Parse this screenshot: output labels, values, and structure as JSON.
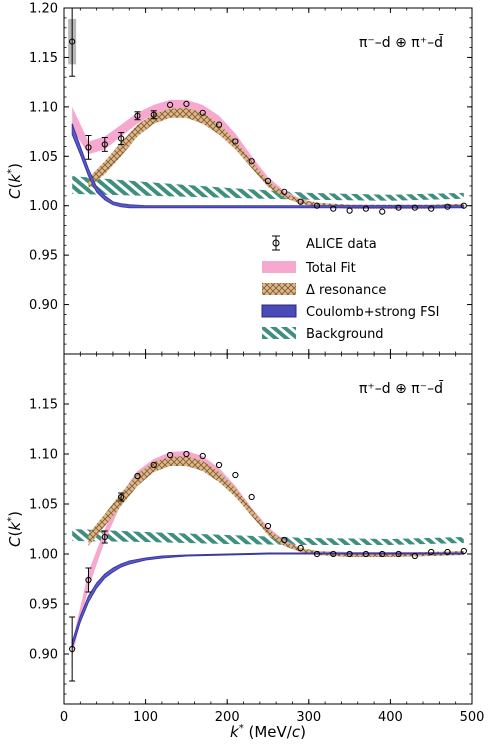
{
  "chart_data": {
    "type": "scatter",
    "xlabel": "k* (MeV/c)",
    "ylabel": "C(k*)",
    "xlim": [
      0,
      500
    ],
    "x_ticks": [
      "0",
      "100",
      "200",
      "300",
      "400",
      "500"
    ],
    "legend_position": "right, middle of top panel",
    "colors": {
      "total_fit": "#f7a8cf",
      "delta": "#b88a5a",
      "coulomb": "#3a3aa0",
      "background": "#3f8f7f",
      "data": "#000000"
    },
    "legend": [
      {
        "key": "data",
        "label": "ALICE data"
      },
      {
        "key": "total_fit",
        "label": "Total Fit"
      },
      {
        "key": "delta",
        "label": "Δ resonance"
      },
      {
        "key": "coulomb",
        "label": "Coulomb+strong FSI"
      },
      {
        "key": "background",
        "label": "Background"
      }
    ],
    "panels": [
      {
        "label": "π⁻–d ⊕ π⁺–d̄",
        "ylim": [
          0.85,
          1.2
        ],
        "y_ticks": [
          "0.90",
          "0.95",
          "1.00",
          "1.05",
          "1.10",
          "1.15",
          "1.20"
        ],
        "data": {
          "x": [
            10,
            30,
            50,
            70,
            90,
            110,
            130,
            150,
            170,
            190,
            210,
            230,
            250,
            270,
            290,
            310,
            330,
            350,
            370,
            390,
            410,
            430,
            450,
            470,
            490
          ],
          "y": [
            1.166,
            1.059,
            1.062,
            1.068,
            1.091,
            1.092,
            1.102,
            1.103,
            1.094,
            1.082,
            1.065,
            1.045,
            1.025,
            1.014,
            1.004,
            1.0,
            0.997,
            0.995,
            0.997,
            0.994,
            0.998,
            0.998,
            0.997,
            0.999,
            1.0
          ],
          "err": [
            0.035,
            0.012,
            0.007,
            0.006,
            0.004,
            0.004,
            0.003,
            0.003,
            0.003,
            0.003,
            0.003,
            0.002,
            0.002,
            0.002,
            0.002,
            0.002,
            0.002,
            0.002,
            0.002,
            0.002,
            0.002,
            0.002,
            0.002,
            0.002,
            0.002
          ],
          "sys_box": [
            {
              "x": 10,
              "low": 1.143,
              "high": 1.189
            }
          ]
        },
        "total_fit": {
          "x": [
            10,
            30,
            50,
            70,
            90,
            110,
            130,
            150,
            170,
            190,
            210,
            230,
            250,
            270,
            290,
            310,
            350,
            400,
            450,
            490
          ],
          "low": [
            1.078,
            1.052,
            1.057,
            1.07,
            1.083,
            1.093,
            1.098,
            1.099,
            1.094,
            1.083,
            1.065,
            1.043,
            1.022,
            1.009,
            1.002,
            0.999,
            0.997,
            0.997,
            0.997,
            0.998
          ],
          "high": [
            1.1,
            1.065,
            1.07,
            1.082,
            1.094,
            1.102,
            1.107,
            1.107,
            1.102,
            1.091,
            1.073,
            1.05,
            1.029,
            1.015,
            1.007,
            1.003,
            1.001,
            1.001,
            1.001,
            1.002
          ]
        },
        "delta": {
          "x": [
            30,
            50,
            70,
            90,
            110,
            130,
            150,
            170,
            190,
            210,
            230,
            250,
            270,
            290,
            310,
            350,
            400,
            450,
            490
          ],
          "low": [
            1.018,
            1.032,
            1.05,
            1.07,
            1.083,
            1.089,
            1.089,
            1.083,
            1.072,
            1.057,
            1.038,
            1.019,
            1.008,
            1.002,
            0.999,
            0.997,
            0.997,
            0.997,
            0.998
          ],
          "high": [
            1.028,
            1.045,
            1.064,
            1.082,
            1.093,
            1.098,
            1.099,
            1.094,
            1.083,
            1.066,
            1.045,
            1.025,
            1.013,
            1.006,
            1.003,
            1.001,
            1.001,
            1.001,
            1.002
          ]
        },
        "coulomb": {
          "x": [
            10,
            20,
            30,
            40,
            50,
            60,
            70,
            80,
            100,
            120,
            150,
            200,
            250,
            300,
            400,
            490
          ],
          "low": [
            1.072,
            1.052,
            1.03,
            1.014,
            1.006,
            1.001,
            0.999,
            0.998,
            0.998,
            0.998,
            0.998,
            0.998,
            0.998,
            0.998,
            0.998,
            0.998
          ],
          "high": [
            1.083,
            1.06,
            1.037,
            1.019,
            1.01,
            1.004,
            1.002,
            1.001,
            1.0,
            1.0,
            1.0,
            1.0,
            1.0,
            1.0,
            1.0,
            1.0
          ]
        },
        "background": {
          "x": [
            10,
            100,
            200,
            300,
            400,
            490
          ],
          "low": [
            1.012,
            1.01,
            1.008,
            1.006,
            1.005,
            1.007
          ],
          "high": [
            1.03,
            1.024,
            1.018,
            1.013,
            1.011,
            1.013
          ]
        }
      },
      {
        "label": "π⁺–d ⊕ π⁻–d̄",
        "ylim": [
          0.85,
          1.2
        ],
        "y_ticks": [
          "0.90",
          "0.95",
          "1.00",
          "1.05",
          "1.10",
          "1.15"
        ],
        "data": {
          "x": [
            10,
            30,
            50,
            70,
            90,
            110,
            130,
            150,
            170,
            190,
            210,
            230,
            250,
            270,
            290,
            310,
            330,
            350,
            370,
            390,
            410,
            430,
            450,
            470,
            490
          ],
          "y": [
            0.905,
            0.974,
            1.017,
            1.057,
            1.078,
            1.089,
            1.099,
            1.1,
            1.098,
            1.089,
            1.079,
            1.057,
            1.028,
            1.014,
            1.006,
            1.0,
            1.0,
            1.0,
            1.0,
            1.0,
            1.0,
            0.998,
            1.002,
            1.002,
            1.003
          ],
          "err": [
            0.032,
            0.012,
            0.006,
            0.004,
            0.003,
            0.003,
            0.003,
            0.003,
            0.003,
            0.003,
            0.003,
            0.002,
            0.002,
            0.002,
            0.002,
            0.002,
            0.002,
            0.002,
            0.002,
            0.002,
            0.002,
            0.002,
            0.002,
            0.002,
            0.002
          ],
          "sys_box": []
        },
        "total_fit": {
          "x": [
            10,
            30,
            50,
            70,
            90,
            110,
            130,
            150,
            170,
            190,
            210,
            230,
            250,
            270,
            290,
            310,
            350,
            400,
            450,
            490
          ],
          "low": [
            0.898,
            0.966,
            1.013,
            1.05,
            1.074,
            1.087,
            1.094,
            1.095,
            1.09,
            1.078,
            1.06,
            1.039,
            1.02,
            1.008,
            1.002,
            0.999,
            0.998,
            0.998,
            0.998,
            0.999
          ],
          "high": [
            0.912,
            0.982,
            1.025,
            1.06,
            1.083,
            1.095,
            1.102,
            1.103,
            1.098,
            1.086,
            1.068,
            1.046,
            1.027,
            1.014,
            1.006,
            1.003,
            1.002,
            1.002,
            1.002,
            1.003
          ]
        },
        "delta": {
          "x": [
            30,
            50,
            70,
            90,
            110,
            130,
            150,
            170,
            190,
            210,
            230,
            250,
            270,
            290,
            310,
            350,
            400,
            450,
            490
          ],
          "low": [
            1.008,
            1.028,
            1.048,
            1.068,
            1.082,
            1.088,
            1.088,
            1.083,
            1.072,
            1.057,
            1.038,
            1.019,
            1.008,
            1.002,
            0.999,
            0.997,
            0.997,
            0.998,
            0.999
          ],
          "high": [
            1.02,
            1.04,
            1.061,
            1.08,
            1.092,
            1.097,
            1.098,
            1.093,
            1.082,
            1.066,
            1.045,
            1.025,
            1.013,
            1.006,
            1.003,
            1.001,
            1.001,
            1.002,
            1.003
          ]
        },
        "coulomb": {
          "x": [
            10,
            20,
            30,
            40,
            50,
            60,
            70,
            80,
            100,
            120,
            150,
            200,
            250,
            300,
            400,
            490
          ],
          "low": [
            0.906,
            0.932,
            0.952,
            0.966,
            0.976,
            0.982,
            0.987,
            0.99,
            0.994,
            0.996,
            0.998,
            0.999,
            1.0,
            1.0,
            1.0,
            1.0
          ],
          "high": [
            0.912,
            0.938,
            0.958,
            0.971,
            0.98,
            0.986,
            0.99,
            0.993,
            0.996,
            0.998,
            0.999,
            1.0,
            1.001,
            1.001,
            1.001,
            1.001
          ]
        },
        "background": {
          "x": [
            10,
            100,
            200,
            300,
            400,
            490
          ],
          "low": [
            1.013,
            1.012,
            1.01,
            1.009,
            1.009,
            1.011
          ],
          "high": [
            1.025,
            1.022,
            1.019,
            1.016,
            1.015,
            1.017
          ]
        }
      }
    ]
  }
}
